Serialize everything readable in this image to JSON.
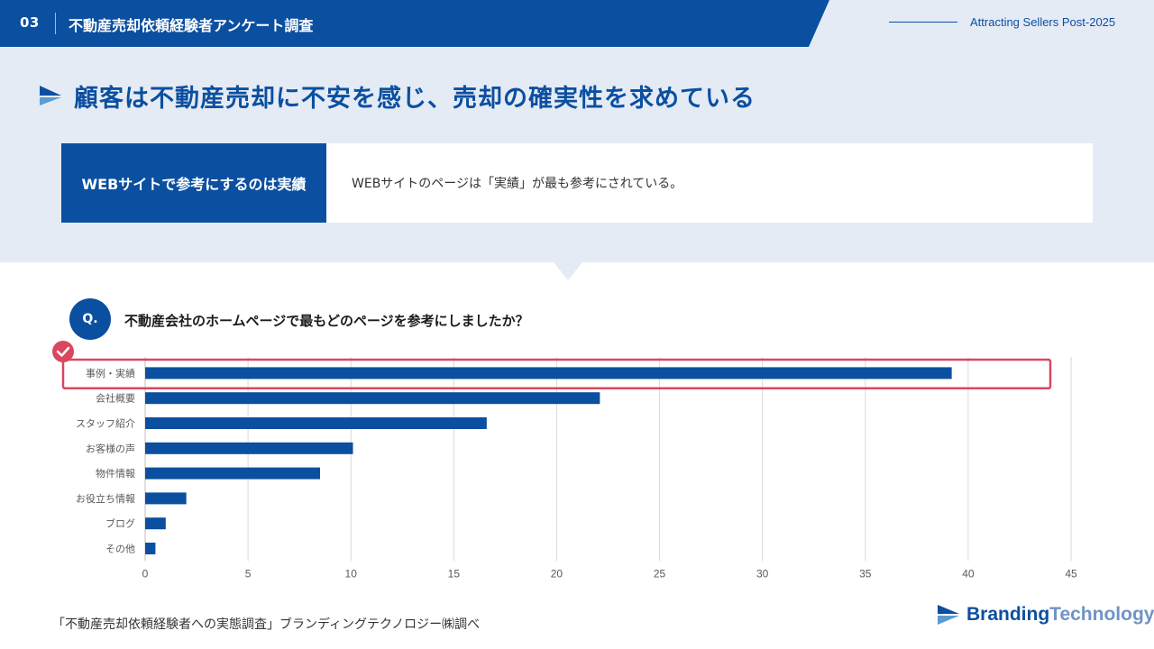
{
  "header": {
    "section_number": "03",
    "section_title": "不動産売却依頼経験者アンケート調査",
    "tagline": "Attracting Sellers Post-2025"
  },
  "page_title": "顧客は不動産売却に不安を感じ、売却の確実性を求めている",
  "summary": {
    "label": "WEBサイトで参考にするのは実績",
    "text": "WEBサイトのページは「実績」が最も参考にされている。"
  },
  "question": {
    "badge": "Q.",
    "text": "不動産会社のホームページで最もどのページを参考にしましたか？"
  },
  "chart_data": {
    "type": "bar",
    "orientation": "horizontal",
    "title": "",
    "categories": [
      "事例・実績",
      "会社概要",
      "スタッフ紹介",
      "お客様の声",
      "物件情報",
      "お役立ち情報",
      "ブログ",
      "その他"
    ],
    "values": [
      39.2,
      22.1,
      16.6,
      10.1,
      8.5,
      2.0,
      1.0,
      0.5
    ],
    "xlim": [
      0,
      45
    ],
    "xticks": [
      0,
      5,
      10,
      15,
      20,
      25,
      30,
      35,
      40,
      45
    ],
    "highlight_index": 0,
    "grid": true,
    "bar_color": "#0b4fa0",
    "highlight_color": "#d9475f"
  },
  "footer": {
    "source": "「不動産売却依頼経験者への実態調査」ブランディングテクノロジー㈱調べ",
    "brand_part1": "Branding",
    "brand_part2": "Technology"
  },
  "colors": {
    "primary": "#0b4fa0",
    "band": "#e4ebf5",
    "accent": "#d9475f"
  }
}
